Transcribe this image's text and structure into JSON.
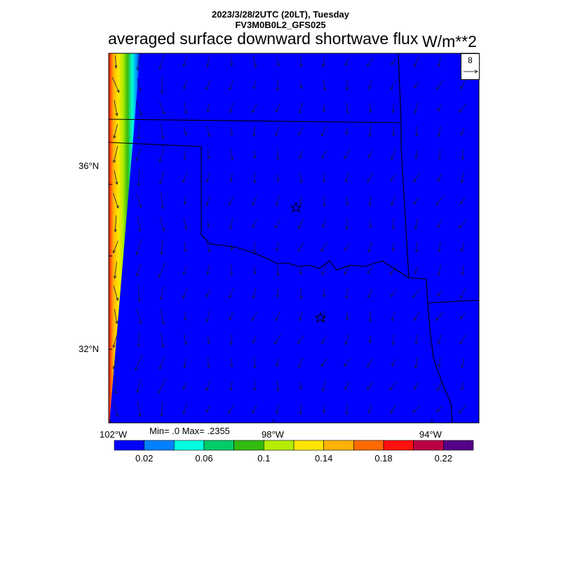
{
  "header": {
    "datetime": "2023/3/28/2UTC (20LT), Tuesday",
    "model": "FV3M0B0L2_GFS025",
    "title": "averaged surface downward shortwave flux",
    "units": "W/m**2"
  },
  "axes": {
    "lat_labels": [
      "36°N",
      "32°N"
    ],
    "lon_labels": [
      "102°W",
      "98°W",
      "94°W"
    ]
  },
  "stats": {
    "text": "Min= .0 Max= .2355"
  },
  "colorbar": {
    "colors": [
      "#0000ff",
      "#0080ff",
      "#00ffe0",
      "#00cc66",
      "#33bb11",
      "#b3ee00",
      "#ffe600",
      "#ffb300",
      "#ff6a00",
      "#ff1010",
      "#bb0044",
      "#550088"
    ],
    "labels": [
      "0.02",
      "0.06",
      "0.1",
      "0.14",
      "0.18",
      "0.22"
    ]
  },
  "reference_vector": {
    "label": "8"
  },
  "map": {
    "background_color": "#0000ff",
    "markers": [
      "star",
      "star"
    ]
  }
}
